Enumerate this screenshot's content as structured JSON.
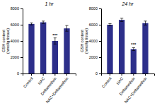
{
  "chart_data": [
    {
      "type": "bar",
      "title": "1 hr",
      "categories": [
        "Control",
        "NAC",
        "Deltamethrin",
        "NAC+Deltamethrin"
      ],
      "values": [
        6100,
        6300,
        4000,
        5550
      ],
      "errors": [
        130,
        150,
        380,
        350
      ],
      "color": "#2d2f8a",
      "ylabel": "GSH content\n(nmol/g tissue)",
      "ylim": [
        0,
        8000
      ],
      "yticks": [
        0,
        2000,
        4000,
        6000,
        8000
      ],
      "annotations": [
        {
          "text": "***",
          "category": "Deltamethrin"
        }
      ],
      "grid": false
    },
    {
      "type": "bar",
      "title": "24 hr",
      "categories": [
        "Control",
        "NAC",
        "Deltamethrin",
        "NAC+Deltamethrin"
      ],
      "values": [
        6000,
        6600,
        3000,
        6200
      ],
      "errors": [
        130,
        200,
        180,
        250
      ],
      "color": "#2d2f8a",
      "ylabel": "GSH content\n(nmol/g tissue)",
      "ylim": [
        0,
        8000
      ],
      "yticks": [
        0,
        2000,
        4000,
        6000,
        8000
      ],
      "annotations": [
        {
          "text": "***",
          "category": "Deltamethrin"
        }
      ],
      "grid": false
    }
  ]
}
